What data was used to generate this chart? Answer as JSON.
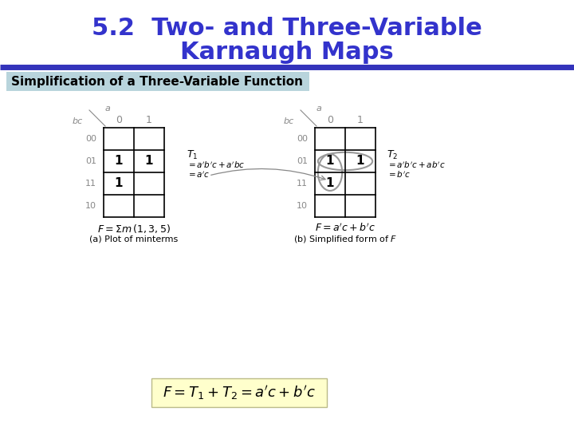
{
  "title_line1": "5.2  Two- and Three-Variable",
  "title_line2": "Karnaugh Maps",
  "subtitle": "Simplification of a Three-Variable Function",
  "title_color": "#3333cc",
  "title_fontsize": 22,
  "subtitle_fontsize": 11,
  "subtitle_bg": "#b8d4dc",
  "bg_color": "#ffffff",
  "blue_line_color": "#3333bb",
  "formula_bg": "#ffffcc",
  "formula_text": "$F = T_1 + T_2 = a'c + b'c$"
}
